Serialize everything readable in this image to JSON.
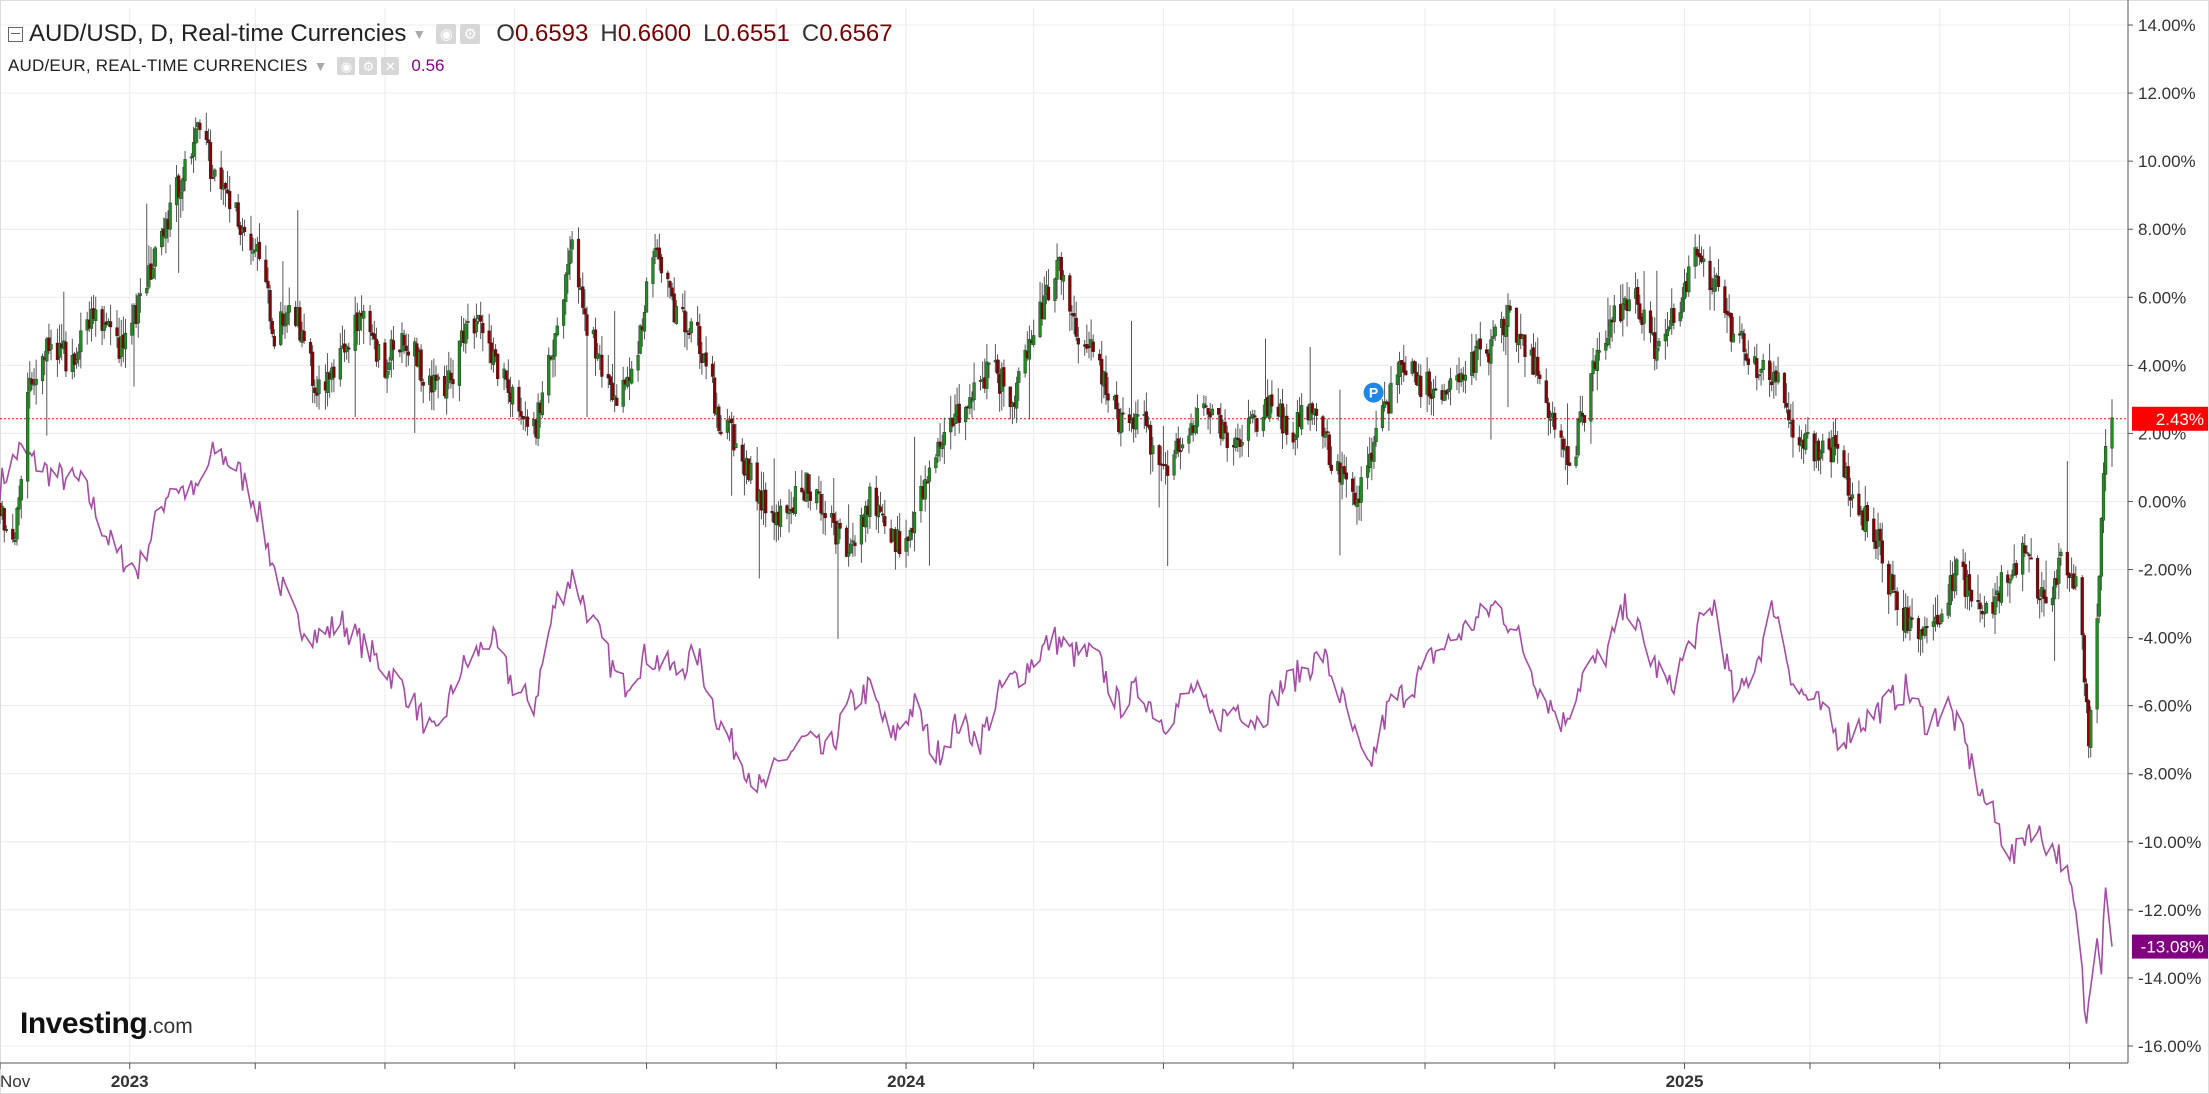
{
  "legend": {
    "main_symbol": "AUD/USD, D, Real-time Currencies",
    "open_label": "O",
    "open_value": "0.6593",
    "high_label": "H",
    "high_value": "0.6600",
    "low_label": "L",
    "low_value": "0.6551",
    "close_label": "C",
    "close_value": "0.6567",
    "compare_symbol": "AUD/EUR, REAL-TIME CURRENCIES",
    "compare_value": "0.56"
  },
  "logo": {
    "main": "Investing",
    "tld": ".com"
  },
  "chart_data": {
    "type": "line",
    "title": "",
    "colors": {
      "up_candle": "#1e8f1e",
      "down_candle": "#8b0000",
      "wick": "#555555",
      "compare_line": "#a64ca6",
      "current_price_line": "#ff0000",
      "current_badge": "#ff0000",
      "compare_badge": "#800080",
      "event_marker": "#1e88e5",
      "grid": "#ececec"
    },
    "y_axis": {
      "position": "right",
      "ylim": [
        -16.5,
        14.5
      ],
      "ticks": [
        "14.00%",
        "12.00%",
        "10.00%",
        "8.00%",
        "6.00%",
        "4.00%",
        "2.00%",
        "0.00%",
        "-2.00%",
        "-4.00%",
        "-6.00%",
        "-8.00%",
        "-10.00%",
        "-12.00%",
        "-14.00%",
        "-16.00%"
      ]
    },
    "x_axis": {
      "ticks": [
        "Nov",
        "2023",
        "2024",
        "2025"
      ],
      "start": "2022-11-01",
      "end": "2025-07-21"
    },
    "grid": true,
    "current_price_badge": "2.43%",
    "compare_badge": "-13.08%",
    "event_marker": {
      "label": "P",
      "date": "2024-08-05",
      "value": 3.2
    },
    "series": [
      {
        "name": "AUD/USD",
        "style": "candlestick",
        "keypoints": [
          [
            "2022-11-01",
            0.0
          ],
          [
            "2022-11-07",
            -1.5
          ],
          [
            "2022-11-15",
            3.5
          ],
          [
            "2022-11-25",
            4.8
          ],
          [
            "2022-12-05",
            4.0
          ],
          [
            "2022-12-15",
            5.5
          ],
          [
            "2022-12-28",
            4.5
          ],
          [
            "2023-01-10",
            6.5
          ],
          [
            "2023-01-20",
            8.5
          ],
          [
            "2023-02-02",
            11.2
          ],
          [
            "2023-02-10",
            9.5
          ],
          [
            "2023-02-20",
            8.5
          ],
          [
            "2023-03-01",
            7.5
          ],
          [
            "2023-03-10",
            5.0
          ],
          [
            "2023-03-20",
            5.5
          ],
          [
            "2023-04-01",
            3.0
          ],
          [
            "2023-04-10",
            4.5
          ],
          [
            "2023-04-20",
            5.5
          ],
          [
            "2023-05-01",
            4.0
          ],
          [
            "2023-05-10",
            5.0
          ],
          [
            "2023-05-20",
            3.5
          ],
          [
            "2023-06-01",
            3.5
          ],
          [
            "2023-06-10",
            5.5
          ],
          [
            "2023-06-20",
            4.5
          ],
          [
            "2023-06-30",
            3.0
          ],
          [
            "2023-07-10",
            2.0
          ],
          [
            "2023-07-20",
            5.0
          ],
          [
            "2023-07-28",
            7.5
          ],
          [
            "2023-08-05",
            5.0
          ],
          [
            "2023-08-15",
            3.0
          ],
          [
            "2023-08-25",
            3.5
          ],
          [
            "2023-09-05",
            7.5
          ],
          [
            "2023-09-15",
            5.5
          ],
          [
            "2023-09-25",
            5.0
          ],
          [
            "2023-10-05",
            2.5
          ],
          [
            "2023-10-15",
            1.5
          ],
          [
            "2023-10-25",
            0.0
          ],
          [
            "2023-11-05",
            -0.5
          ],
          [
            "2023-11-15",
            0.5
          ],
          [
            "2023-11-25",
            -0.5
          ],
          [
            "2023-12-05",
            -1.5
          ],
          [
            "2023-12-15",
            0.0
          ],
          [
            "2023-12-25",
            -1.0
          ],
          [
            "2024-01-02",
            -1.5
          ],
          [
            "2024-01-10",
            0.5
          ],
          [
            "2024-01-20",
            2.0
          ],
          [
            "2024-01-30",
            3.0
          ],
          [
            "2024-02-10",
            4.0
          ],
          [
            "2024-02-20",
            3.0
          ],
          [
            "2024-03-01",
            5.0
          ],
          [
            "2024-03-12",
            7.0
          ],
          [
            "2024-03-22",
            5.0
          ],
          [
            "2024-04-01",
            4.0
          ],
          [
            "2024-04-10",
            2.5
          ],
          [
            "2024-04-20",
            2.5
          ],
          [
            "2024-05-01",
            1.0
          ],
          [
            "2024-05-10",
            1.5
          ],
          [
            "2024-05-20",
            3.0
          ],
          [
            "2024-06-01",
            1.5
          ],
          [
            "2024-06-10",
            2.0
          ],
          [
            "2024-06-20",
            3.0
          ],
          [
            "2024-07-01",
            2.0
          ],
          [
            "2024-07-10",
            3.0
          ],
          [
            "2024-07-20",
            1.0
          ],
          [
            "2024-07-30",
            0.0
          ],
          [
            "2024-08-10",
            2.0
          ],
          [
            "2024-08-20",
            4.0
          ],
          [
            "2024-08-30",
            3.5
          ],
          [
            "2024-09-10",
            3.0
          ],
          [
            "2024-09-20",
            4.0
          ],
          [
            "2024-10-01",
            4.5
          ],
          [
            "2024-10-10",
            5.5
          ],
          [
            "2024-10-20",
            4.5
          ],
          [
            "2024-10-30",
            2.5
          ],
          [
            "2024-11-08",
            1.0
          ],
          [
            "2024-11-18",
            3.5
          ],
          [
            "2024-11-28",
            5.5
          ],
          [
            "2024-12-08",
            6.0
          ],
          [
            "2024-12-18",
            4.5
          ],
          [
            "2024-12-28",
            5.5
          ],
          [
            "2025-01-06",
            7.5
          ],
          [
            "2025-01-14",
            6.5
          ],
          [
            "2025-01-24",
            5.0
          ],
          [
            "2025-02-03",
            4.0
          ],
          [
            "2025-02-13",
            3.5
          ],
          [
            "2025-02-23",
            2.0
          ],
          [
            "2025-03-03",
            1.5
          ],
          [
            "2025-03-12",
            1.5
          ],
          [
            "2025-03-22",
            0.0
          ],
          [
            "2025-04-01",
            -1.0
          ],
          [
            "2025-04-10",
            -3.0
          ],
          [
            "2025-04-20",
            -4.0
          ],
          [
            "2025-04-30",
            -3.5
          ],
          [
            "2025-05-10",
            -2.0
          ],
          [
            "2025-05-20",
            -3.5
          ],
          [
            "2025-05-30",
            -2.5
          ],
          [
            "2025-06-10",
            -1.5
          ],
          [
            "2025-06-20",
            -3.0
          ],
          [
            "2025-06-28",
            -1.5
          ],
          [
            "2025-07-05",
            -2.5
          ],
          [
            "2025-07-10",
            -7.0
          ],
          [
            "2025-07-14",
            -3.0
          ],
          [
            "2025-07-18",
            1.5
          ],
          [
            "2025-07-21",
            2.43
          ]
        ]
      },
      {
        "name": "AUD/EUR",
        "style": "line",
        "keypoints": [
          [
            "2022-11-01",
            0.5
          ],
          [
            "2022-11-10",
            1.5
          ],
          [
            "2022-11-25",
            0.8
          ],
          [
            "2022-12-10",
            0.5
          ],
          [
            "2022-12-25",
            -1.5
          ],
          [
            "2023-01-05",
            -2.0
          ],
          [
            "2023-01-20",
            0.5
          ],
          [
            "2023-02-01",
            0.2
          ],
          [
            "2023-02-10",
            1.5
          ],
          [
            "2023-02-20",
            1.0
          ],
          [
            "2023-03-01",
            0.0
          ],
          [
            "2023-03-10",
            -2.0
          ],
          [
            "2023-03-20",
            -3.5
          ],
          [
            "2023-04-01",
            -4.0
          ],
          [
            "2023-04-10",
            -3.5
          ],
          [
            "2023-04-25",
            -4.5
          ],
          [
            "2023-05-10",
            -5.5
          ],
          [
            "2023-05-25",
            -7.0
          ],
          [
            "2023-06-05",
            -5.0
          ],
          [
            "2023-06-20",
            -4.0
          ],
          [
            "2023-07-01",
            -5.5
          ],
          [
            "2023-07-10",
            -6.0
          ],
          [
            "2023-07-20",
            -3.0
          ],
          [
            "2023-07-28",
            -2.2
          ],
          [
            "2023-08-10",
            -4.0
          ],
          [
            "2023-08-20",
            -5.5
          ],
          [
            "2023-09-01",
            -4.5
          ],
          [
            "2023-09-15",
            -5.0
          ],
          [
            "2023-09-25",
            -4.5
          ],
          [
            "2023-10-05",
            -6.5
          ],
          [
            "2023-10-15",
            -7.5
          ],
          [
            "2023-10-25",
            -8.5
          ],
          [
            "2023-11-05",
            -7.5
          ],
          [
            "2023-11-15",
            -7.0
          ],
          [
            "2023-11-25",
            -7.5
          ],
          [
            "2023-12-05",
            -6.0
          ],
          [
            "2023-12-15",
            -5.5
          ],
          [
            "2023-12-25",
            -7.0
          ],
          [
            "2024-01-05",
            -6.0
          ],
          [
            "2024-01-15",
            -7.5
          ],
          [
            "2024-01-25",
            -6.5
          ],
          [
            "2024-02-05",
            -7.0
          ],
          [
            "2024-02-15",
            -5.5
          ],
          [
            "2024-02-25",
            -5.0
          ],
          [
            "2024-03-10",
            -4.0
          ],
          [
            "2024-03-20",
            -4.5
          ],
          [
            "2024-03-30",
            -4.5
          ],
          [
            "2024-04-10",
            -6.0
          ],
          [
            "2024-04-20",
            -5.5
          ],
          [
            "2024-05-01",
            -6.5
          ],
          [
            "2024-05-15",
            -5.5
          ],
          [
            "2024-05-25",
            -6.5
          ],
          [
            "2024-06-05",
            -6.0
          ],
          [
            "2024-06-15",
            -6.5
          ],
          [
            "2024-06-25",
            -5.5
          ],
          [
            "2024-07-05",
            -5.0
          ],
          [
            "2024-07-15",
            -4.5
          ],
          [
            "2024-07-25",
            -6.0
          ],
          [
            "2024-08-05",
            -8.0
          ],
          [
            "2024-08-15",
            -6.0
          ],
          [
            "2024-08-25",
            -5.5
          ],
          [
            "2024-09-05",
            -4.5
          ],
          [
            "2024-09-15",
            -4.0
          ],
          [
            "2024-09-25",
            -3.5
          ],
          [
            "2024-10-05",
            -3.0
          ],
          [
            "2024-10-15",
            -4.0
          ],
          [
            "2024-10-25",
            -5.5
          ],
          [
            "2024-11-05",
            -6.5
          ],
          [
            "2024-11-15",
            -5.0
          ],
          [
            "2024-11-25",
            -4.5
          ],
          [
            "2024-12-05",
            -3.0
          ],
          [
            "2024-12-15",
            -4.5
          ],
          [
            "2024-12-25",
            -5.5
          ],
          [
            "2025-01-05",
            -4.0
          ],
          [
            "2025-01-15",
            -3.0
          ],
          [
            "2025-01-25",
            -6.0
          ],
          [
            "2025-02-05",
            -4.5
          ],
          [
            "2025-02-12",
            -3.0
          ],
          [
            "2025-02-22",
            -5.5
          ],
          [
            "2025-03-05",
            -6.0
          ],
          [
            "2025-03-15",
            -7.0
          ],
          [
            "2025-03-25",
            -6.5
          ],
          [
            "2025-04-05",
            -6.0
          ],
          [
            "2025-04-15",
            -5.5
          ],
          [
            "2025-04-25",
            -6.5
          ],
          [
            "2025-05-05",
            -6.0
          ],
          [
            "2025-05-12",
            -7.0
          ],
          [
            "2025-05-20",
            -8.5
          ],
          [
            "2025-05-28",
            -9.5
          ],
          [
            "2025-06-05",
            -10.5
          ],
          [
            "2025-06-12",
            -9.5
          ],
          [
            "2025-06-20",
            -10.0
          ],
          [
            "2025-06-28",
            -10.5
          ],
          [
            "2025-07-05",
            -12.5
          ],
          [
            "2025-07-09",
            -15.5
          ],
          [
            "2025-07-12",
            -13.0
          ],
          [
            "2025-07-14",
            -12.5
          ],
          [
            "2025-07-16",
            -13.5
          ],
          [
            "2025-07-18",
            -11.0
          ],
          [
            "2025-07-19",
            -10.0
          ],
          [
            "2025-07-20",
            -12.5
          ],
          [
            "2025-07-21",
            -13.08
          ]
        ]
      }
    ]
  }
}
